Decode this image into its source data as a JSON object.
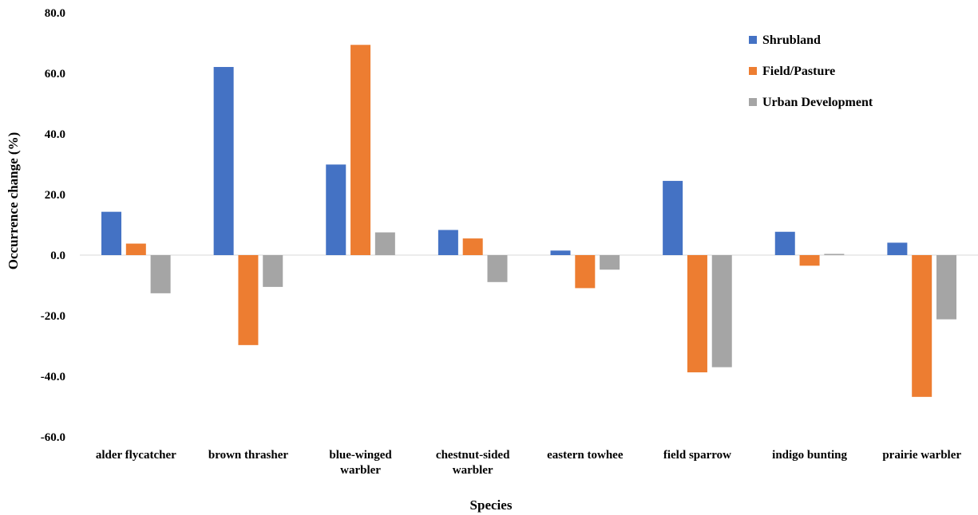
{
  "chart_data": {
    "type": "bar",
    "title": "",
    "xlabel": "Species",
    "ylabel": "Occurrence change (%)",
    "ylim": [
      -60,
      80
    ],
    "yticks": [
      "80.0",
      "60.0",
      "40.0",
      "20.0",
      "0.0",
      "-20.0",
      "-40.0",
      "-60.0"
    ],
    "ytick_values": [
      80,
      60,
      40,
      20,
      0,
      -20,
      -40,
      -60
    ],
    "grid": false,
    "legend_position": "top-right",
    "categories": [
      [
        "alder flycatcher"
      ],
      [
        "brown thrasher"
      ],
      [
        "blue-winged",
        "warbler"
      ],
      [
        "chestnut-sided",
        "warbler"
      ],
      [
        "eastern towhee"
      ],
      [
        "field sparrow"
      ],
      [
        "indigo bunting"
      ],
      [
        "prairie warbler"
      ]
    ],
    "series": [
      {
        "name": "Shrubland",
        "color": "#4472C4",
        "values": [
          14.3,
          62.1,
          29.9,
          8.3,
          1.5,
          24.5,
          7.7,
          4.1
        ]
      },
      {
        "name": "Field/Pasture",
        "color": "#ED7D31",
        "values": [
          3.8,
          -29.7,
          69.4,
          5.5,
          -10.9,
          -38.7,
          -3.5,
          -46.8
        ]
      },
      {
        "name": "Urban Development",
        "color": "#A5A5A5",
        "values": [
          -12.6,
          -10.5,
          7.5,
          -8.9,
          -4.8,
          -37.0,
          0.4,
          -21.2
        ]
      }
    ]
  }
}
